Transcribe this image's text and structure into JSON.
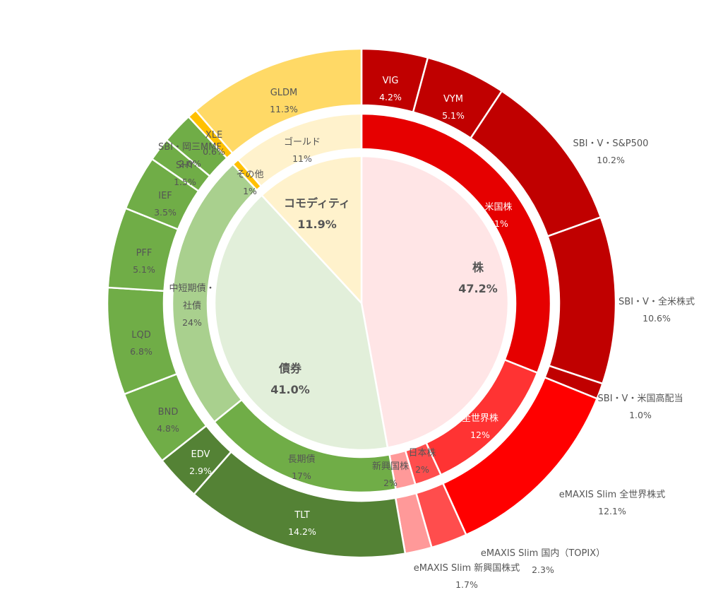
{
  "chart_data": {
    "type": "sunburst",
    "title": "",
    "center": [
      {
        "name": "株",
        "value": 47.2,
        "label": "47.2%",
        "color": "#FFE5E6",
        "text": "dark"
      },
      {
        "name": "債券",
        "value": 41.0,
        "label": "41.0%",
        "color": "#E2EFDA",
        "text": "dark"
      },
      {
        "name": "コモディティ",
        "value": 11.9,
        "label": "11.9%",
        "color": "#FFF2CC",
        "text": "dark"
      }
    ],
    "middle": [
      {
        "name": "米国株",
        "value": 31.0,
        "label": "31%",
        "color": "#E60000",
        "text": "light"
      },
      {
        "name": "全世界株",
        "value": 12.1,
        "label": "12%",
        "color": "#FF3333",
        "text": "light"
      },
      {
        "name": "日本株",
        "value": 2.3,
        "label": "2%",
        "color": "#FF4D4D",
        "text": "dark"
      },
      {
        "name": "新興国株",
        "value": 1.7,
        "label": "2%",
        "color": "#FF9999",
        "text": "dark"
      },
      {
        "name": "長期債",
        "value": 17.1,
        "label": "17%",
        "color": "#70AD47",
        "text": "dark"
      },
      {
        "name": "中短期債・社債",
        "value": 23.9,
        "label": "24%",
        "color": "#A9D08E",
        "text": "dark"
      },
      {
        "name": "その他",
        "value": 0.6,
        "label": "1%",
        "color": "#FFC000",
        "text": "dark"
      },
      {
        "name": "ゴールド",
        "value": 11.3,
        "label": "11%",
        "color": "#FFF2CC",
        "text": "dark"
      }
    ],
    "outer": [
      {
        "name": "VIG",
        "value": 4.2,
        "label": "4.2%",
        "color": "#C00000",
        "text": "light"
      },
      {
        "name": "VYM",
        "value": 5.1,
        "label": "5.1%",
        "color": "#C00000",
        "text": "light"
      },
      {
        "name": "SBI・V・S&P500",
        "value": 10.2,
        "label": "10.2%",
        "color": "#C00000",
        "text": "dark"
      },
      {
        "name": "SBI・V・全米株式",
        "value": 10.6,
        "label": "10.6%",
        "color": "#C00000",
        "text": "dark"
      },
      {
        "name": "SBI・V・米国高配当",
        "value": 1.0,
        "label": "1.0%",
        "color": "#C00000",
        "text": "dark"
      },
      {
        "name": "eMAXIS Slim 全世界株式",
        "value": 12.1,
        "label": "12.1%",
        "color": "#FF0000",
        "text": "dark"
      },
      {
        "name": "eMAXIS Slim 国内（TOPIX）",
        "value": 2.3,
        "label": "2.3%",
        "color": "#FF4D4D",
        "text": "dark"
      },
      {
        "name": "eMAXIS Slim 新興国株式",
        "value": 1.7,
        "label": "1.7%",
        "color": "#FF9999",
        "text": "dark"
      },
      {
        "name": "TLT",
        "value": 14.2,
        "label": "14.2%",
        "color": "#548235",
        "text": "light"
      },
      {
        "name": "EDV",
        "value": 2.9,
        "label": "2.9%",
        "color": "#548235",
        "text": "light"
      },
      {
        "name": "BND",
        "value": 4.8,
        "label": "4.8%",
        "color": "#70AD47",
        "text": "dark"
      },
      {
        "name": "LQD",
        "value": 6.8,
        "label": "6.8%",
        "color": "#70AD47",
        "text": "dark"
      },
      {
        "name": "PFF",
        "value": 5.1,
        "label": "5.1%",
        "color": "#70AD47",
        "text": "dark"
      },
      {
        "name": "IEF",
        "value": 3.5,
        "label": "3.5%",
        "color": "#70AD47",
        "text": "dark"
      },
      {
        "name": "SHY",
        "value": 1.5,
        "label": "1.5%",
        "color": "#70AD47",
        "text": "dark"
      },
      {
        "name": "SBI・岡三MMF",
        "value": 2.0,
        "label": "2.0%",
        "color": "#70AD47",
        "text": "dark"
      },
      {
        "name": "XLE",
        "value": 0.6,
        "label": "0.6%",
        "color": "#FFC000",
        "text": "dark"
      },
      {
        "name": "GLDM",
        "value": 11.3,
        "label": "11.3%",
        "color": "#FFD966",
        "text": "dark"
      }
    ]
  }
}
